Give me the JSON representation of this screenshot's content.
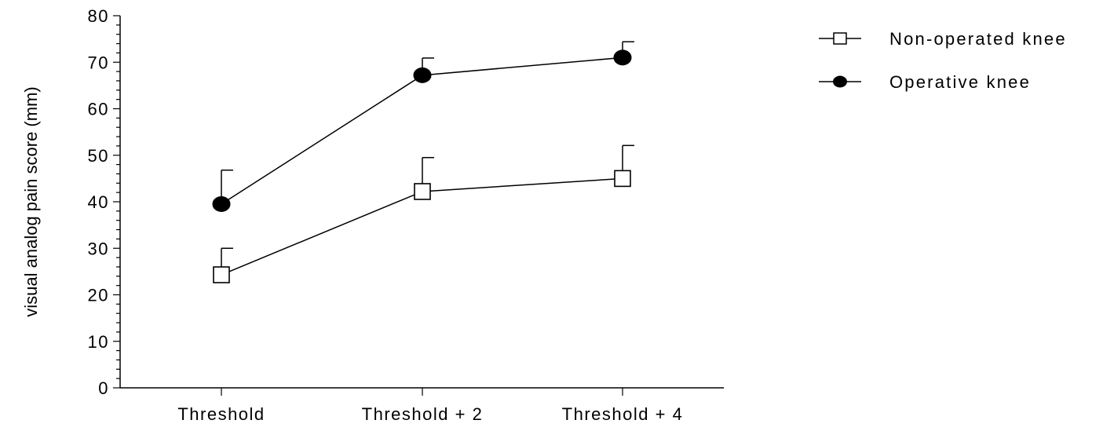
{
  "chart_data": {
    "type": "line",
    "categories": [
      "Threshold",
      "Threshold + 2",
      "Threshold + 4"
    ],
    "ylabel": "visual analog pain score (mm)",
    "xlabel": "",
    "ylim": [
      0,
      80
    ],
    "yticks": [
      0,
      10,
      20,
      30,
      40,
      50,
      60,
      70,
      80
    ],
    "legend_position": "top-right",
    "series": [
      {
        "name": "Non-operated knee",
        "marker": "open-square",
        "values": [
          24.3,
          42.2,
          45.0
        ],
        "error_plus": [
          5.7,
          7.3,
          7.1
        ]
      },
      {
        "name": "Operative knee",
        "marker": "filled-circle",
        "values": [
          39.5,
          67.2,
          71.0
        ],
        "error_plus": [
          7.3,
          3.7,
          3.4
        ]
      }
    ]
  }
}
